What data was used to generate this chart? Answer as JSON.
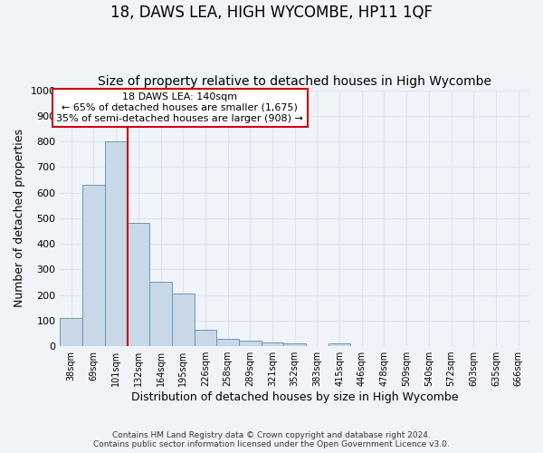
{
  "title": "18, DAWS LEA, HIGH WYCOMBE, HP11 1QF",
  "subtitle": "Size of property relative to detached houses in High Wycombe",
  "xlabel": "Distribution of detached houses by size in High Wycombe",
  "ylabel": "Number of detached properties",
  "bar_labels": [
    "38sqm",
    "69sqm",
    "101sqm",
    "132sqm",
    "164sqm",
    "195sqm",
    "226sqm",
    "258sqm",
    "289sqm",
    "321sqm",
    "352sqm",
    "383sqm",
    "415sqm",
    "446sqm",
    "478sqm",
    "509sqm",
    "540sqm",
    "572sqm",
    "603sqm",
    "635sqm",
    "666sqm"
  ],
  "bar_values": [
    110,
    630,
    800,
    480,
    250,
    205,
    63,
    30,
    22,
    14,
    10,
    0,
    10,
    0,
    0,
    0,
    0,
    0,
    0,
    0,
    0
  ],
  "bar_color": "#c8d8e8",
  "bar_edgecolor": "#6699bb",
  "vline_color": "#cc0000",
  "ylim": [
    0,
    1000
  ],
  "yticks": [
    0,
    100,
    200,
    300,
    400,
    500,
    600,
    700,
    800,
    900,
    1000
  ],
  "annotation_title": "18 DAWS LEA: 140sqm",
  "annotation_line1": "← 65% of detached houses are smaller (1,675)",
  "annotation_line2": "35% of semi-detached houses are larger (908) →",
  "annotation_box_color": "#ffffff",
  "annotation_box_edgecolor": "#cc0000",
  "footer_line1": "Contains HM Land Registry data © Crown copyright and database right 2024.",
  "footer_line2": "Contains public sector information licensed under the Open Government Licence v3.0.",
  "background_color": "#f0f4f8",
  "grid_color": "#d8e4f0",
  "title_fontsize": 12,
  "subtitle_fontsize": 10
}
